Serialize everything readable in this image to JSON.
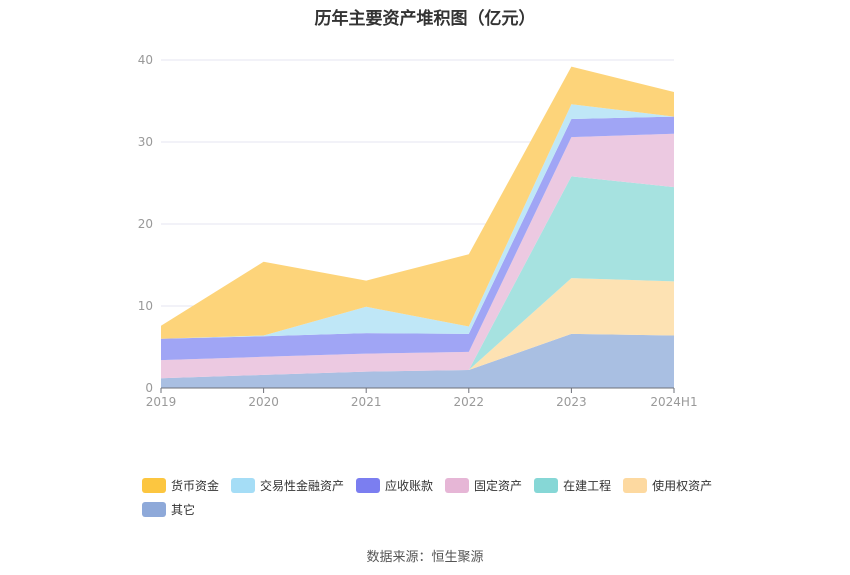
{
  "title": "历年主要资产堆积图（亿元）",
  "source": "数据来源：恒生聚源",
  "chart_data": {
    "type": "area",
    "stacked": true,
    "title": "历年主要资产堆积图（亿元）",
    "categories": [
      "2019",
      "2020",
      "2021",
      "2022",
      "2023",
      "2024H1"
    ],
    "ylim": [
      0,
      40
    ],
    "yticks": [
      0,
      10,
      20,
      30,
      40
    ],
    "grid": true,
    "legend_position": "bottom",
    "series": [
      {
        "name": "其它",
        "color": "#a9bfe2",
        "values": [
          1.2,
          1.6,
          2.0,
          2.2,
          6.6,
          6.4
        ]
      },
      {
        "name": "使用权资产",
        "color": "#fde2b3",
        "values": [
          0.0,
          0.0,
          0.0,
          0.0,
          6.8,
          6.6
        ]
      },
      {
        "name": "在建工程",
        "color": "#a6e2e0",
        "values": [
          0.0,
          0.0,
          0.0,
          0.0,
          12.4,
          11.5
        ]
      },
      {
        "name": "固定资产",
        "color": "#ecc9e1",
        "values": [
          2.2,
          2.2,
          2.2,
          2.2,
          4.8,
          6.5
        ]
      },
      {
        "name": "应收账款",
        "color": "#a0a5f5",
        "values": [
          2.6,
          2.5,
          2.5,
          2.2,
          2.2,
          2.1
        ]
      },
      {
        "name": "交易性金融资产",
        "color": "#bfe7f7",
        "values": [
          0.0,
          0.1,
          3.2,
          0.9,
          1.8,
          0.0
        ]
      },
      {
        "name": "货币资金",
        "color": "#fdd47a",
        "values": [
          1.6,
          9.0,
          3.2,
          8.8,
          4.6,
          3.0
        ]
      }
    ]
  },
  "legend": [
    {
      "label": "货币资金",
      "color": "#fcc640"
    },
    {
      "label": "交易性金融资产",
      "color": "#a5ddf6"
    },
    {
      "label": "应收账款",
      "color": "#7b7ef0"
    },
    {
      "label": "固定资产",
      "color": "#e6b6d6"
    },
    {
      "label": "在建工程",
      "color": "#86d7d6"
    },
    {
      "label": "使用权资产",
      "color": "#fdd9a0"
    },
    {
      "label": "其它",
      "color": "#8ea9d9"
    }
  ]
}
